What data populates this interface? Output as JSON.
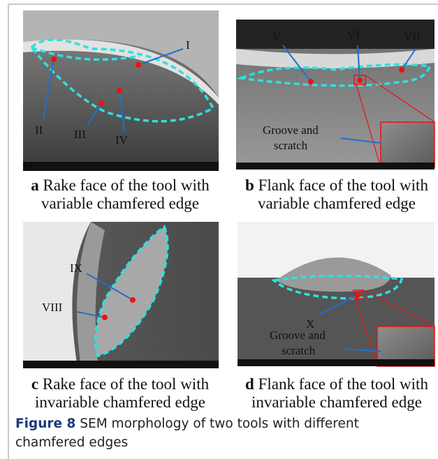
{
  "panels": [
    {
      "letter": "a",
      "caption": [
        "Rake face of the tool with",
        "variable chamfered edge"
      ],
      "labels": [
        "I",
        "II",
        "III",
        "IV"
      ]
    },
    {
      "letter": "b",
      "caption": [
        "Flank face of the tool with",
        "variable chamfered edge"
      ],
      "labels": [
        "V",
        "VI",
        "VII"
      ],
      "note": [
        "Groove and",
        "scratch"
      ]
    },
    {
      "letter": "c",
      "caption": [
        "Rake face of the tool with",
        "invariable chamfered edge"
      ],
      "labels": [
        "IX",
        "VIII"
      ]
    },
    {
      "letter": "d",
      "caption": [
        "Flank face of the tool with",
        "invariable chamfered edge"
      ],
      "labels": [
        "X"
      ],
      "note": [
        "Groove and",
        "scratch"
      ]
    }
  ],
  "figure": {
    "label": "Figure 8",
    "text": "SEM morphology of two tools with different chamfered edges"
  }
}
